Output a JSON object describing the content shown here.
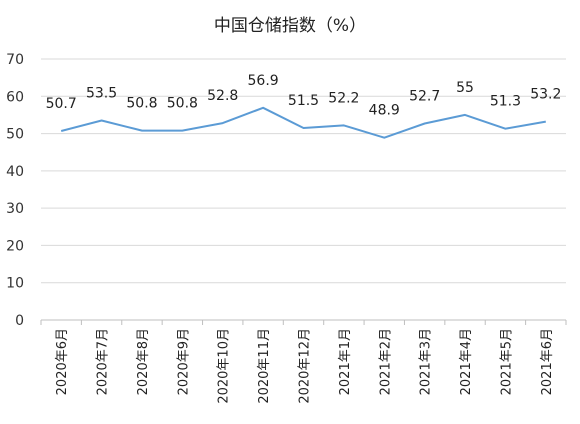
{
  "chart_data": {
    "type": "line",
    "title": "中国仓储指数（%）",
    "xlabel": "",
    "ylabel": "",
    "categories": [
      "2020年6月",
      "2020年7月",
      "2020年8月",
      "2020年9月",
      "2020年10月",
      "2020年11月",
      "2020年12月",
      "2021年1月",
      "2021年2月",
      "2021年3月",
      "2021年4月",
      "2021年5月",
      "2021年6月"
    ],
    "series": [
      {
        "name": "",
        "values": [
          50.7,
          53.5,
          50.8,
          50.8,
          52.8,
          56.9,
          51.5,
          52.2,
          48.9,
          52.7,
          55,
          51.3,
          53.2
        ]
      }
    ],
    "ylim": [
      0,
      70
    ],
    "yticks": [
      0,
      10,
      20,
      30,
      40,
      50,
      60,
      70
    ],
    "grid": true,
    "legend": "none",
    "line_color": "#5b9bd5"
  }
}
